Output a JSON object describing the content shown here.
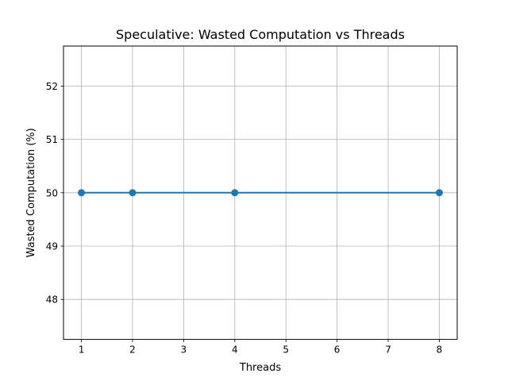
{
  "chart_data": {
    "type": "line",
    "title": "Speculative: Wasted Computation vs Threads",
    "xlabel": "Threads",
    "ylabel": "Wasted Computation (%)",
    "x": [
      1,
      2,
      4,
      8
    ],
    "series": [
      {
        "values": [
          50,
          50,
          50,
          50
        ],
        "color": "#1f77b4",
        "marker": "circle"
      }
    ],
    "xlim": [
      0.65,
      8.35
    ],
    "ylim": [
      47.25,
      52.75
    ],
    "xticks": [
      1,
      2,
      3,
      4,
      5,
      6,
      7,
      8
    ],
    "yticks": [
      48,
      49,
      50,
      51,
      52
    ],
    "grid": true,
    "legend": "none"
  }
}
